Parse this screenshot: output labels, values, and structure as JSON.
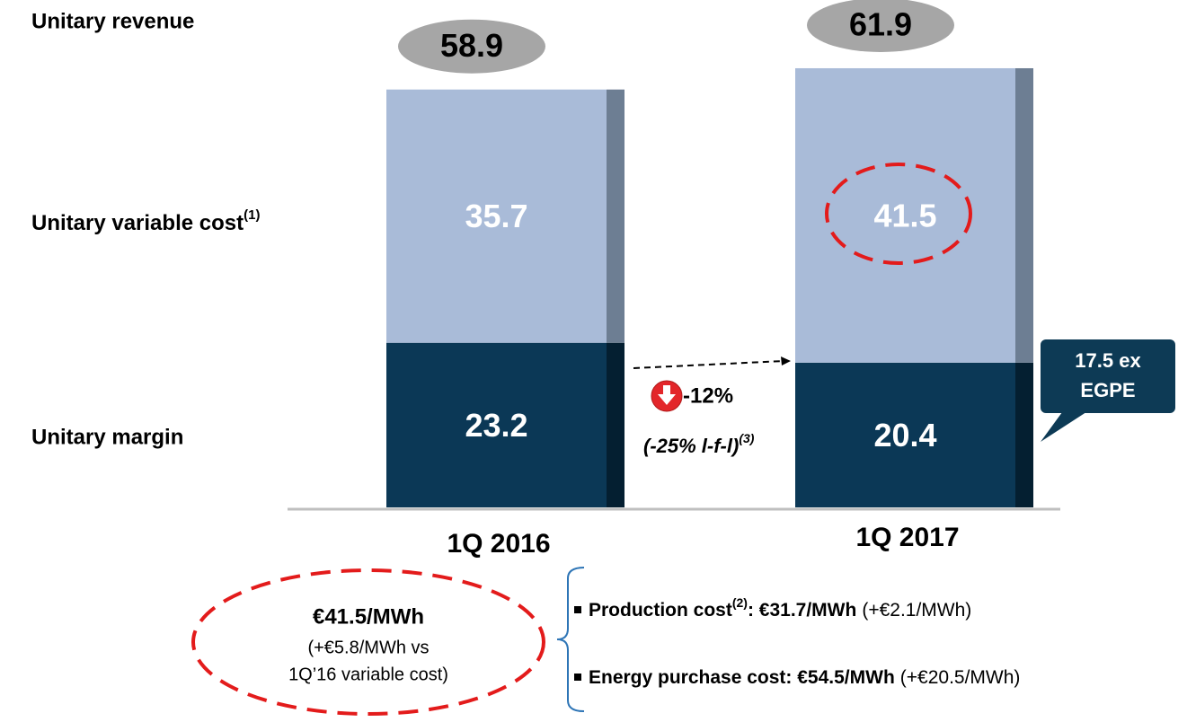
{
  "chart_data": {
    "type": "bar",
    "stacked": true,
    "categories": [
      "1Q 2016",
      "1Q 2017"
    ],
    "series": [
      {
        "name": "Unitary margin",
        "color": "#0b3856",
        "edge": "#041f31",
        "values": [
          23.2,
          20.4
        ]
      },
      {
        "name": "Unitary variable cost",
        "footnote": "(1)",
        "color": "#a9bbd8",
        "edge": "#6d7e93",
        "values": [
          35.7,
          41.5
        ]
      }
    ],
    "total_label": "Unitary revenue",
    "totals": [
      58.9,
      61.9
    ],
    "change": {
      "value": "-12%",
      "lfl": "(-25% l-f-l)",
      "footnote": "(3)"
    },
    "callout": [
      "17.5 ex",
      "EGPE"
    ],
    "note": {
      "title": "€41.5/MWh",
      "lines": [
        "(+€5.8/MWh vs",
        "1Q’16 variable cost)"
      ]
    },
    "bullets": [
      {
        "label": "Production cost",
        "footnote": "(2)",
        "value": ": €31.7/MWh",
        "change": "(+€2.1/MWh)"
      },
      {
        "label": "Energy purchase cost",
        "value": ": €54.5/MWh",
        "change": "(+€20.5/MWh)"
      }
    ]
  }
}
